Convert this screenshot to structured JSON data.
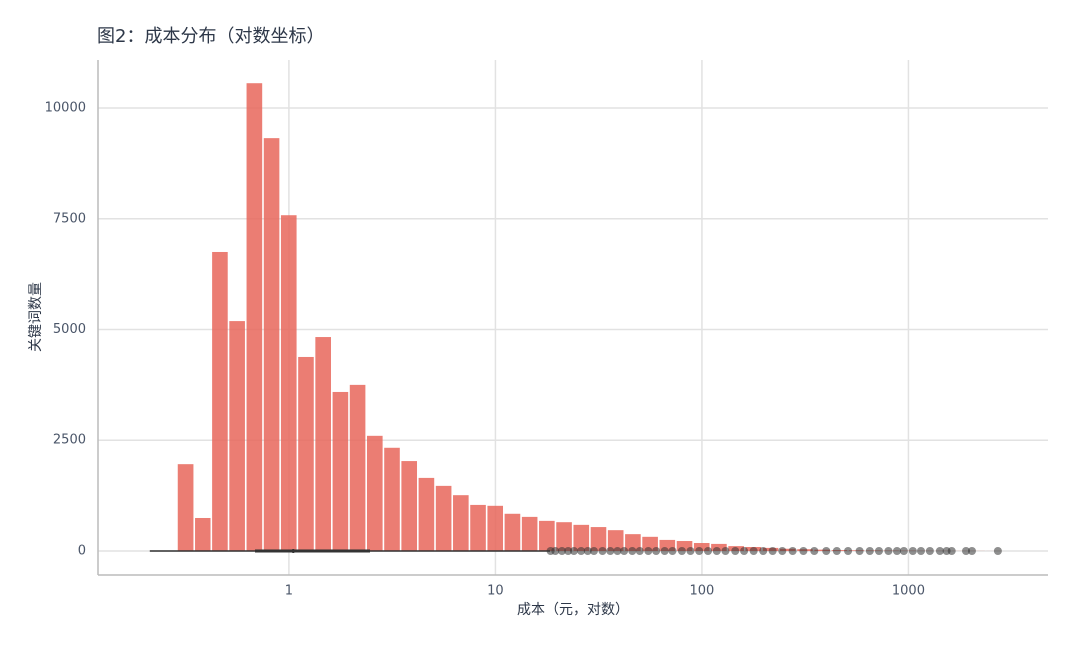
{
  "chart_data": {
    "type": "histogram",
    "title": "图2：成本分布（对数坐标）",
    "x_label": "成本（元，对数）",
    "y_label": "关键词数量",
    "x_scale": "log",
    "grid": true,
    "color": "#e8665a",
    "xlim": [
      0.119,
      4740
    ],
    "ylim": [
      -542,
      11084
    ],
    "xticks": [
      1,
      10,
      100,
      1000
    ],
    "yticks": [
      0,
      2500,
      5000,
      7500,
      10000
    ],
    "bins": [
      0.287,
      0.348,
      0.421,
      0.51,
      0.618,
      0.749,
      0.907,
      1.099,
      1.331,
      1.613,
      1.954,
      2.367,
      2.868,
      3.474,
      4.209,
      5.099,
      6.178,
      7.484,
      9.067,
      10.98,
      13.31,
      16.12,
      19.53,
      23.66,
      28.67,
      34.73,
      42.08,
      50.98,
      61.76,
      74.82,
      90.65,
      109.8,
      133,
      161.2,
      195.3,
      236.6,
      286.6,
      347.2,
      420.7,
      509.6,
      617.4,
      748,
      906.2,
      1097.9,
      1330.1,
      1611,
      1952,
      2365,
      2865
    ],
    "values": [
      1960,
      745,
      6750,
      5190,
      10560,
      9320,
      7580,
      4380,
      4830,
      3590,
      3750,
      2600,
      2330,
      2030,
      1650,
      1470,
      1260,
      1040,
      1020,
      840,
      770,
      680,
      650,
      590,
      540,
      470,
      380,
      320,
      250,
      225,
      180,
      160,
      110,
      90,
      70,
      50,
      40,
      30,
      20,
      15,
      12,
      8,
      6,
      4,
      3,
      2,
      2,
      1
    ],
    "boxplot": {
      "color": "#333333",
      "whislo": 0.212,
      "q1": 0.685,
      "median": 1.05,
      "q3": 2.47,
      "whishi": 18.4,
      "outliers": [
        18.5,
        19.5,
        21,
        22.5,
        24,
        26,
        28,
        30,
        33,
        36,
        39,
        42,
        46,
        50,
        55,
        60,
        66,
        72,
        80,
        88,
        97,
        107,
        118,
        130,
        145,
        160,
        178,
        198,
        220,
        245,
        275,
        310,
        350,
        400,
        450,
        510,
        580,
        650,
        720,
        800,
        880,
        950,
        1050,
        1150,
        1270,
        1420,
        1530,
        1620,
        1900,
        2030,
        2711
      ]
    }
  }
}
